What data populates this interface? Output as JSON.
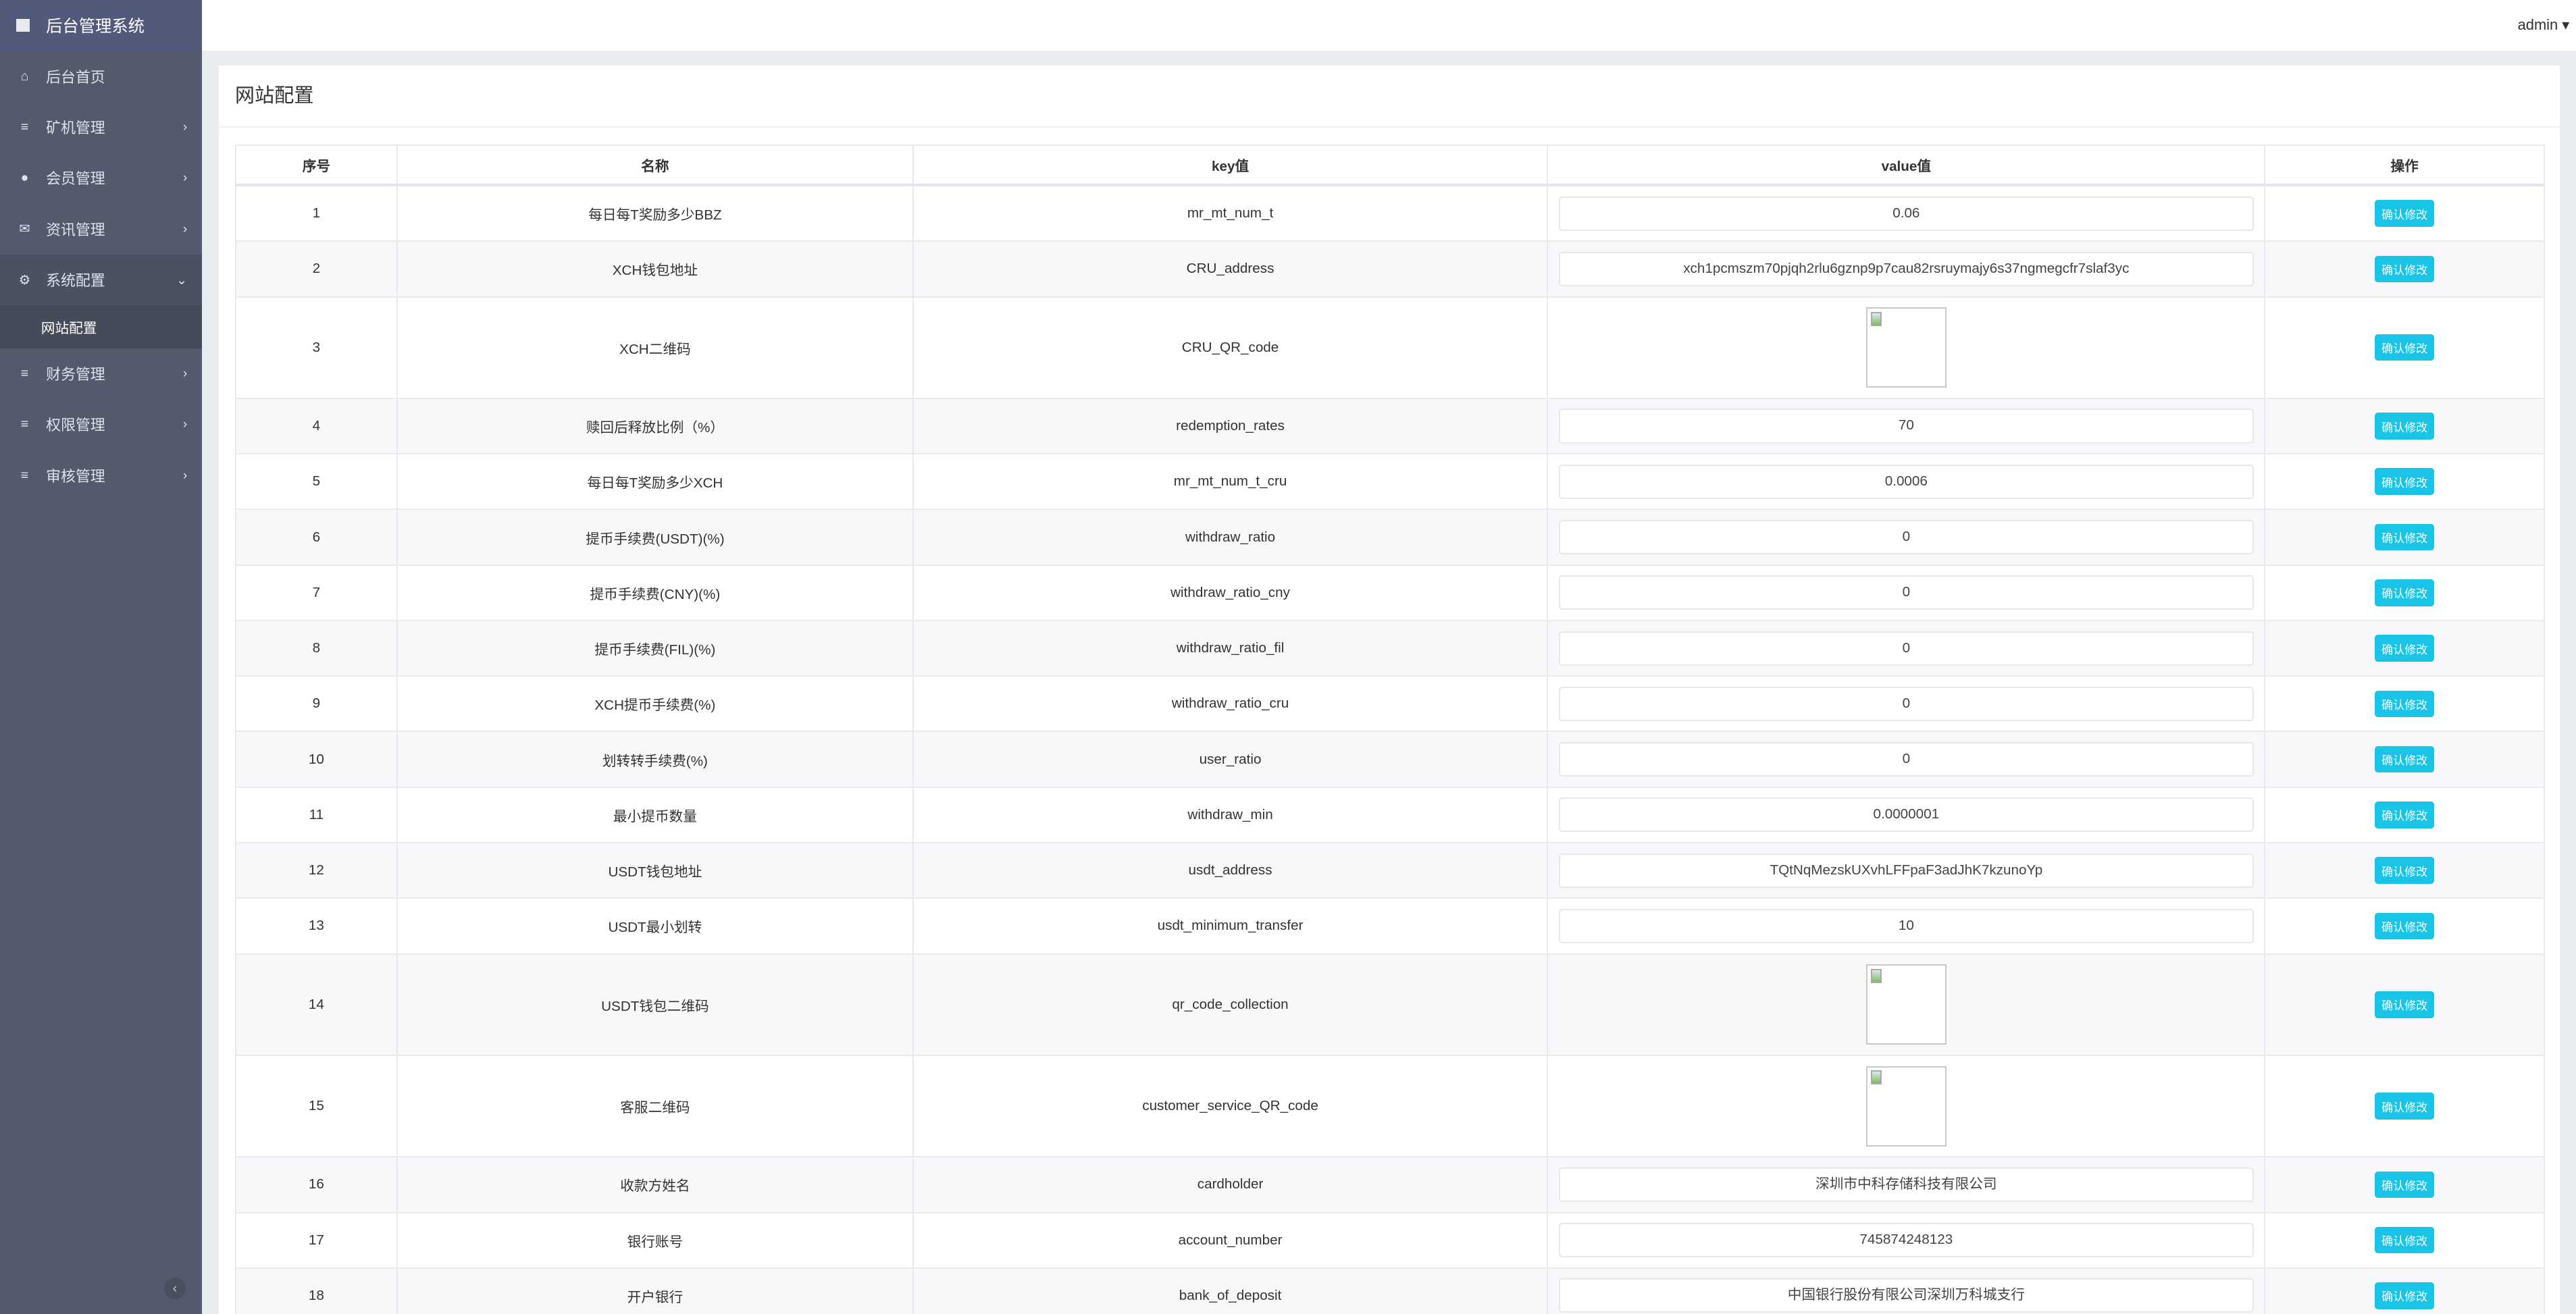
{
  "app_title": "后台管理系统",
  "user": "admin",
  "sidebar": {
    "items": [
      {
        "label": "后台首页",
        "icon": "home-icon"
      },
      {
        "label": "矿机管理",
        "icon": "list-icon"
      },
      {
        "label": "会员管理",
        "icon": "user-icon"
      },
      {
        "label": "资讯管理",
        "icon": "envelope-icon"
      },
      {
        "label": "系统配置",
        "icon": "gears-icon",
        "expanded": true
      },
      {
        "label": "财务管理",
        "icon": "list-icon"
      },
      {
        "label": "权限管理",
        "icon": "list-icon"
      },
      {
        "label": "审核管理",
        "icon": "list-icon"
      }
    ],
    "active_sub": "网站配置"
  },
  "page_title": "网站配置",
  "table": {
    "headers": [
      "序号",
      "名称",
      "key值",
      "value值",
      "操作"
    ],
    "button_label": "确认修改",
    "rows": [
      {
        "no": "1",
        "name": "每日每T奖励多少BBZ",
        "key": "mr_mt_num_t",
        "value": "0.06"
      },
      {
        "no": "2",
        "name": "XCH钱包地址",
        "key": "CRU_address",
        "value": "xch1pcmszm70pjqh2rlu6gznp9p7cau82rsruymajy6s37ngmegcfr7slaf3yc"
      },
      {
        "no": "3",
        "name": "XCH二维码",
        "key": "CRU_QR_code",
        "value": null,
        "image": true
      },
      {
        "no": "4",
        "name": "赎回后释放比例（%）",
        "key": "redemption_rates",
        "value": "70"
      },
      {
        "no": "5",
        "name": "每日每T奖励多少XCH",
        "key": "mr_mt_num_t_cru",
        "value": "0.0006"
      },
      {
        "no": "6",
        "name": "提币手续费(USDT)(%)",
        "key": "withdraw_ratio",
        "value": "0"
      },
      {
        "no": "7",
        "name": "提币手续费(CNY)(%)",
        "key": "withdraw_ratio_cny",
        "value": "0"
      },
      {
        "no": "8",
        "name": "提币手续费(FIL)(%)",
        "key": "withdraw_ratio_fil",
        "value": "0"
      },
      {
        "no": "9",
        "name": "XCH提币手续费(%)",
        "key": "withdraw_ratio_cru",
        "value": "0"
      },
      {
        "no": "10",
        "name": "划转转手续费(%)",
        "key": "user_ratio",
        "value": "0"
      },
      {
        "no": "11",
        "name": "最小提币数量",
        "key": "withdraw_min",
        "value": "0.0000001"
      },
      {
        "no": "12",
        "name": "USDT钱包地址",
        "key": "usdt_address",
        "value": "TQtNqMezskUXvhLFFpaF3adJhK7kzunoYp"
      },
      {
        "no": "13",
        "name": "USDT最小划转",
        "key": "usdt_minimum_transfer",
        "value": "10"
      },
      {
        "no": "14",
        "name": "USDT钱包二维码",
        "key": "qr_code_collection",
        "value": null,
        "image": true
      },
      {
        "no": "15",
        "name": "客服二维码",
        "key": "customer_service_QR_code",
        "value": null,
        "image": true
      },
      {
        "no": "16",
        "name": "收款方姓名",
        "key": "cardholder",
        "value": "深圳市中科存储科技有限公司"
      },
      {
        "no": "17",
        "name": "银行账号",
        "key": "account_number",
        "value": "745874248123"
      },
      {
        "no": "18",
        "name": "开户银行",
        "key": "bank_of_deposit",
        "value": "中国银行股份有限公司深圳万科城支行"
      }
    ]
  },
  "colors": {
    "sidebar": "#545a6c",
    "brand": "#525a7c",
    "button": "#19c4e6"
  }
}
